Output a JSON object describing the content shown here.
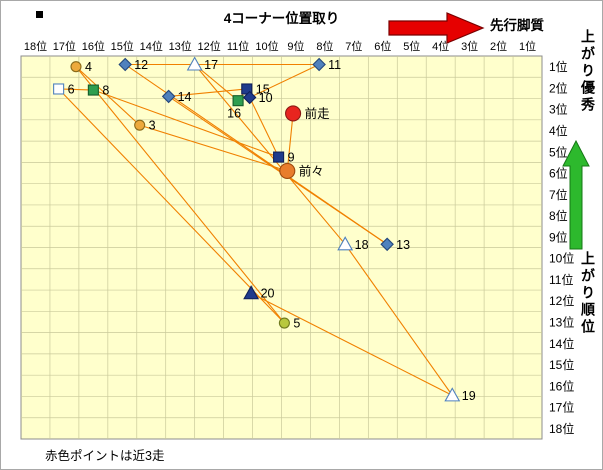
{
  "header": {
    "arrow_label": "先行脚質"
  },
  "right_panel": {
    "top_label": "上がり優秀",
    "bottom_label": "上がり順位"
  },
  "footer": {
    "note": "赤色ポイントは近3走"
  },
  "colors": {
    "red_arrow": "#e60000",
    "green_arrow": "#2db92d",
    "plot_bg": "#ffffcc",
    "grid": "#c9c99a",
    "line": "#f08000"
  },
  "chart_data": {
    "type": "scatter",
    "title": "4コーナー位置取り",
    "x_ticks": [
      "18位",
      "17位",
      "16位",
      "15位",
      "14位",
      "13位",
      "12位",
      "11位",
      "10位",
      "9位",
      "8位",
      "7位",
      "6位",
      "5位",
      "4位",
      "3位",
      "2位",
      "1位"
    ],
    "y_ticks": [
      "1位",
      "2位",
      "3位",
      "4位",
      "5位",
      "6位",
      "7位",
      "8位",
      "9位",
      "10位",
      "11位",
      "12位",
      "13位",
      "14位",
      "15位",
      "16位",
      "17位",
      "18位"
    ],
    "x_range": [
      18,
      1
    ],
    "y_range": [
      1,
      18
    ],
    "grid": true,
    "plot_bg": "#ffffcc",
    "grid_color": "#c9c99a",
    "line_color": "#f08000",
    "points": [
      {
        "label": "4",
        "x": 16.6,
        "y": 1.0,
        "marker": "circle",
        "fill": "#eda93c",
        "stroke": "#8a6a1a",
        "size": 10,
        "label_pos": "right"
      },
      {
        "label": "12",
        "x": 14.9,
        "y": 0.9,
        "marker": "diamond",
        "fill": "#4f81bd",
        "stroke": "#24477c",
        "size": 10,
        "label_pos": "right"
      },
      {
        "label": "17",
        "x": 12.5,
        "y": 0.9,
        "marker": "triangle-open",
        "fill": "#ffffff",
        "stroke": "#4f81bd",
        "size": 11,
        "label_pos": "right"
      },
      {
        "label": "11",
        "x": 8.2,
        "y": 0.9,
        "marker": "diamond",
        "fill": "#4f81bd",
        "stroke": "#24477c",
        "size": 10,
        "label_pos": "right"
      },
      {
        "label": "6",
        "x": 17.2,
        "y": 2.05,
        "marker": "square-open",
        "fill": "#ffffff",
        "stroke": "#4f81bd",
        "size": 10,
        "label_pos": "right"
      },
      {
        "label": "8",
        "x": 16.0,
        "y": 2.1,
        "marker": "square",
        "fill": "#2e9e4f",
        "stroke": "#155c2a",
        "size": 10,
        "label_pos": "right"
      },
      {
        "label": "14",
        "x": 13.4,
        "y": 2.4,
        "marker": "diamond",
        "fill": "#4f81bd",
        "stroke": "#24477c",
        "size": 10,
        "label_pos": "right"
      },
      {
        "label": "15",
        "x": 10.7,
        "y": 2.05,
        "marker": "square",
        "fill": "#1f3b8c",
        "stroke": "#10205a",
        "size": 10,
        "label_pos": "right"
      },
      {
        "label": "10",
        "x": 10.6,
        "y": 2.45,
        "marker": "diamond",
        "fill": "#1f3b8c",
        "stroke": "#10205a",
        "size": 10,
        "label_pos": "right"
      },
      {
        "label": "16",
        "x": 11.0,
        "y": 2.6,
        "marker": "square",
        "fill": "#2e9e4f",
        "stroke": "#155c2a",
        "size": 10,
        "label_pos": "below"
      },
      {
        "label": "前走",
        "x": 9.1,
        "y": 3.2,
        "marker": "circle",
        "fill": "#e8251f",
        "stroke": "#8b1a14",
        "size": 15,
        "label_pos": "right"
      },
      {
        "label": "3",
        "x": 14.4,
        "y": 3.75,
        "marker": "circle",
        "fill": "#eda93c",
        "stroke": "#8a6a1a",
        "size": 10,
        "label_pos": "right"
      },
      {
        "label": "9",
        "x": 9.6,
        "y": 5.25,
        "marker": "square",
        "fill": "#1f3b8c",
        "stroke": "#10205a",
        "size": 10,
        "label_pos": "right"
      },
      {
        "label": "前々",
        "x": 9.3,
        "y": 5.9,
        "marker": "circle",
        "fill": "#e87d2c",
        "stroke": "#9c4a0f",
        "size": 15,
        "label_pos": "right"
      },
      {
        "label": "18",
        "x": 7.3,
        "y": 9.35,
        "marker": "triangle-open",
        "fill": "#ffffff",
        "stroke": "#4f81bd",
        "size": 11,
        "label_pos": "right"
      },
      {
        "label": "13",
        "x": 5.85,
        "y": 9.35,
        "marker": "diamond",
        "fill": "#4f81bd",
        "stroke": "#24477c",
        "size": 10,
        "label_pos": "right"
      },
      {
        "label": "20",
        "x": 10.55,
        "y": 11.65,
        "marker": "triangle",
        "fill": "#1f3b8c",
        "stroke": "#10205a",
        "size": 11,
        "label_pos": "right"
      },
      {
        "label": "5",
        "x": 9.4,
        "y": 13.05,
        "marker": "circle",
        "fill": "#b8c83e",
        "stroke": "#6f7a1e",
        "size": 10,
        "label_pos": "right"
      },
      {
        "label": "19",
        "x": 3.6,
        "y": 16.45,
        "marker": "triangle-open",
        "fill": "#ffffff",
        "stroke": "#4f81bd",
        "size": 11,
        "label_pos": "right"
      }
    ],
    "connections": [
      [
        "前走",
        "前々"
      ],
      [
        "前々",
        "3"
      ],
      [
        "3",
        "4"
      ],
      [
        "4",
        "5"
      ],
      [
        "5",
        "6"
      ],
      [
        "6",
        "8"
      ],
      [
        "8",
        "9"
      ],
      [
        "9",
        "10"
      ],
      [
        "10",
        "11"
      ],
      [
        "11",
        "12"
      ],
      [
        "12",
        "13"
      ],
      [
        "13",
        "14"
      ],
      [
        "14",
        "15"
      ],
      [
        "15",
        "16"
      ],
      [
        "16",
        "17"
      ],
      [
        "17",
        "18"
      ],
      [
        "18",
        "19"
      ],
      [
        "19",
        "20"
      ]
    ]
  }
}
